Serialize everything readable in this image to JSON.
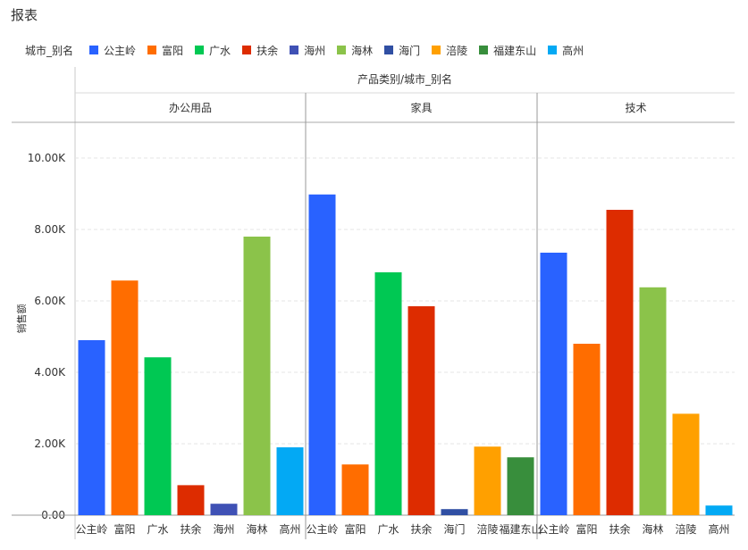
{
  "report": {
    "title": "报表"
  },
  "colors": {
    "公主岭": "#2962FF",
    "富阳": "#FF6D00",
    "广水": "#00C853",
    "扶余": "#DD2C00",
    "海州": "#3F51B5",
    "海林": "#8BC34A",
    "海门": "#304FA3",
    "涪陵": "#FFA000",
    "福建东山": "#388E3C",
    "高州": "#03A9F4"
  },
  "chart_data": {
    "type": "bar",
    "legend": {
      "title": "城市_别名",
      "items": [
        "公主岭",
        "富阳",
        "广水",
        "扶余",
        "海州",
        "海林",
        "海门",
        "涪陵",
        "福建东山",
        "高州"
      ],
      "position": "top-left"
    },
    "column_header": "产品类别/城市_别名",
    "ylabel": "销售额",
    "ylim": [
      0,
      11000
    ],
    "yticks": [
      {
        "value": 0,
        "label": "0.00"
      },
      {
        "value": 2000,
        "label": "2.00K"
      },
      {
        "value": 4000,
        "label": "4.00K"
      },
      {
        "value": 6000,
        "label": "6.00K"
      },
      {
        "value": 8000,
        "label": "8.00K"
      },
      {
        "value": 10000,
        "label": "10.00K"
      }
    ],
    "grid": true,
    "groups": [
      {
        "name": "办公用品",
        "bars": [
          {
            "city": "公主岭",
            "value": 4900
          },
          {
            "city": "富阳",
            "value": 6570
          },
          {
            "city": "广水",
            "value": 4420
          },
          {
            "city": "扶余",
            "value": 840
          },
          {
            "city": "海州",
            "value": 320
          },
          {
            "city": "海林",
            "value": 7800
          },
          {
            "city": "高州",
            "value": 1900
          }
        ]
      },
      {
        "name": "家具",
        "bars": [
          {
            "city": "公主岭",
            "value": 8980
          },
          {
            "city": "富阳",
            "value": 1420
          },
          {
            "city": "广水",
            "value": 6800
          },
          {
            "city": "扶余",
            "value": 5850
          },
          {
            "city": "海门",
            "value": 170
          },
          {
            "city": "涪陵",
            "value": 1920
          },
          {
            "city": "福建东山",
            "value": 1620
          }
        ]
      },
      {
        "name": "技术",
        "bars": [
          {
            "city": "公主岭",
            "value": 7350
          },
          {
            "city": "富阳",
            "value": 4800
          },
          {
            "city": "扶余",
            "value": 8550
          },
          {
            "city": "海林",
            "value": 6380
          },
          {
            "city": "涪陵",
            "value": 2840
          },
          {
            "city": "高州",
            "value": 270
          }
        ]
      }
    ]
  }
}
